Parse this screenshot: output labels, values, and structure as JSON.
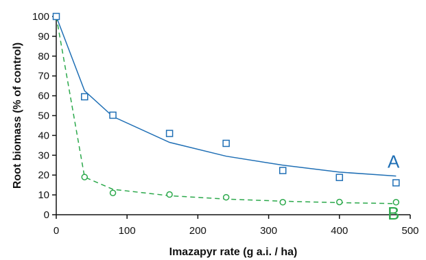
{
  "chart_data": {
    "type": "scatter",
    "title": "",
    "xlabel": "Imazapyr rate (g a.i. / ha)",
    "ylabel": "Root biomass (% of control)",
    "xlim": [
      0,
      500
    ],
    "ylim": [
      0,
      100
    ],
    "xticks": [
      0,
      100,
      200,
      300,
      400,
      500
    ],
    "yticks": [
      0,
      10,
      20,
      30,
      40,
      50,
      60,
      70,
      80,
      90,
      100
    ],
    "grid": false,
    "legend": "none",
    "series": [
      {
        "name": "A",
        "color": "#1f6fb5",
        "marker": "square",
        "line_style": "solid",
        "points": [
          [
            0,
            100
          ],
          [
            40,
            59.5
          ],
          [
            80,
            50.2
          ],
          [
            160,
            41
          ],
          [
            240,
            36
          ],
          [
            320,
            22.3
          ],
          [
            400,
            18.8
          ],
          [
            480,
            16.1
          ]
        ],
        "fit": [
          [
            0,
            100
          ],
          [
            40,
            62.5
          ],
          [
            80,
            49.5
          ],
          [
            160,
            36.5
          ],
          [
            240,
            29.5
          ],
          [
            320,
            25
          ],
          [
            400,
            21.5
          ],
          [
            480,
            19.5
          ]
        ]
      },
      {
        "name": "B",
        "color": "#2aa84a",
        "marker": "circle",
        "line_style": "dashed",
        "points": [
          [
            40,
            19
          ],
          [
            80,
            11
          ],
          [
            160,
            10.2
          ],
          [
            240,
            8.8
          ],
          [
            320,
            6.3
          ],
          [
            400,
            6.4
          ],
          [
            480,
            6.3
          ]
        ],
        "fit": [
          [
            0,
            100
          ],
          [
            40,
            19
          ],
          [
            80,
            12.8
          ],
          [
            160,
            9.6
          ],
          [
            240,
            7.9
          ],
          [
            320,
            6.8
          ],
          [
            400,
            6.1
          ],
          [
            480,
            5.6
          ]
        ]
      }
    ]
  }
}
